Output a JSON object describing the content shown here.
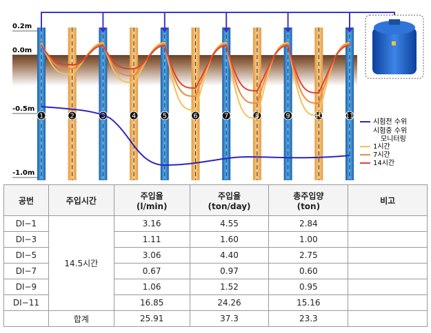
{
  "diagram": {
    "depth_labels": [
      "0.2m",
      "0.0m",
      "-0.5m",
      "-1.0m"
    ],
    "wells": [
      "1",
      "2",
      "3",
      "4",
      "5",
      "6",
      "7",
      "8",
      "9",
      "10",
      "11"
    ],
    "legend": {
      "before": "시험전 수위",
      "during": "시험중 수위",
      "during_sub": "모니터링",
      "h1": "1시간",
      "h7": "7시간",
      "h14": "14시간"
    }
  },
  "table": {
    "header": [
      [
        "공번"
      ],
      [
        "주입시간"
      ],
      [
        "주입율",
        "(l/min)"
      ],
      [
        "주입율",
        "(ton/day)"
      ],
      [
        "총주입양",
        "(ton)"
      ],
      [
        "비고"
      ]
    ],
    "time": "14.5시간",
    "rows": [
      {
        "id": "DI−1",
        "rate_lpm": "3.16",
        "rate_tpd": "4.55",
        "total": "2.84"
      },
      {
        "id": "DI−3",
        "rate_lpm": "1.11",
        "rate_tpd": "1.60",
        "total": "1.00"
      },
      {
        "id": "DI−5",
        "rate_lpm": "3.06",
        "rate_tpd": "4.40",
        "total": "2.75"
      },
      {
        "id": "DI−7",
        "rate_lpm": "0.67",
        "rate_tpd": "0.97",
        "total": "0.60"
      },
      {
        "id": "DI−9",
        "rate_lpm": "1.06",
        "rate_tpd": "1.52",
        "total": "0.95"
      },
      {
        "id": "DI−11",
        "rate_lpm": "16.85",
        "rate_tpd": "24.26",
        "total": "15.16"
      }
    ],
    "sum": {
      "label": "합계",
      "rate_lpm": "25.91",
      "rate_tpd": "37.3",
      "total": "23.3"
    }
  }
}
